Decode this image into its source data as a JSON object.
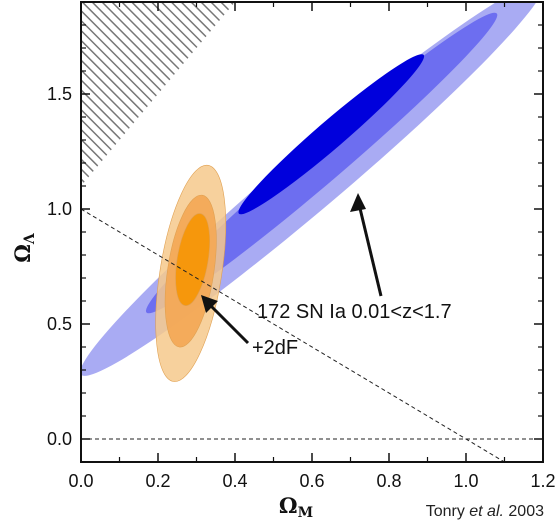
{
  "chart_data": {
    "type": "contour",
    "xlabel": "Ω",
    "xlabel_sub": "M",
    "ylabel": "Ω",
    "ylabel_sub": "Λ",
    "xlim": [
      0.0,
      1.2
    ],
    "ylim": [
      -0.1,
      1.9
    ],
    "xticks": [
      0.0,
      0.2,
      0.4,
      0.6,
      0.8,
      1.0,
      1.2
    ],
    "xtick_labels": [
      "0.0",
      "0.2",
      "0.4",
      "0.6",
      "0.8",
      "1.0",
      "1.2"
    ],
    "yticks": [
      0.0,
      0.5,
      1.0,
      1.5
    ],
    "ytick_labels": [
      "0.0",
      "0.5",
      "1.0",
      "1.5"
    ],
    "grid": false,
    "colors": {
      "sn_outer": "#a9abf3",
      "sn_mid": "#6d6ef0",
      "sn_inner": "#0000dc",
      "combined_outer": "#f6c98c",
      "combined_mid": "#f3a957",
      "combined_inner": "#f59608",
      "hatch": "#777777"
    },
    "series": [
      {
        "name": "172 SN Ia 0.01<z<1.7",
        "contours": [
          {
            "level": "outer",
            "center": [
              0.6,
              1.13
            ],
            "major_axis_endpoints": [
              [
                0.0,
                0.28
              ],
              [
                1.2,
                1.98
              ]
            ],
            "minor_half_width_at_center": [
              0.12,
              0.0
            ]
          },
          {
            "level": "middle",
            "center": [
              0.62,
              1.2
            ],
            "major_axis_endpoints": [
              [
                0.17,
                0.55
              ],
              [
                1.08,
                1.85
              ]
            ],
            "minor_half_width_at_center": [
              0.08,
              0.0
            ]
          },
          {
            "level": "inner",
            "center": [
              0.65,
              1.32
            ],
            "major_axis_endpoints": [
              [
                0.41,
                0.98
              ],
              [
                0.89,
                1.67
              ]
            ],
            "minor_half_width_at_center": [
              0.055,
              0.0
            ]
          }
        ]
      },
      {
        "name": "+2dF",
        "contours": [
          {
            "level": "outer",
            "center": [
              0.28,
              0.72
            ],
            "major_axis_endpoints": [
              [
                0.24,
                0.25
              ],
              [
                0.33,
                1.19
              ]
            ],
            "minor_half_width": 0.08
          },
          {
            "level": "middle",
            "center": [
              0.28,
              0.75
            ],
            "major_axis_endpoints": [
              [
                0.255,
                0.4
              ],
              [
                0.315,
                1.06
              ]
            ],
            "minor_half_width": 0.06
          },
          {
            "level": "inner",
            "center": [
              0.29,
              0.78
            ],
            "major_axis_endpoints": [
              [
                0.27,
                0.58
              ],
              [
                0.31,
                0.98
              ]
            ],
            "minor_half_width": 0.04
          }
        ]
      }
    ],
    "reference_lines": [
      {
        "style": "dashed",
        "points": [
          [
            0.0,
            1.0
          ],
          [
            1.2,
            -0.2
          ]
        ]
      },
      {
        "style": "dashed",
        "points": [
          [
            0.0,
            0.0
          ],
          [
            1.2,
            0.0
          ]
        ]
      }
    ],
    "excluded_region": {
      "style": "hatched",
      "vertices": [
        [
          0.0,
          1.9
        ],
        [
          0.4,
          1.9
        ],
        [
          0.0,
          1.1
        ]
      ]
    },
    "annotations": [
      {
        "text": "172 SN Ia 0.01<z<1.7",
        "points_to": [
          0.72,
          1.03
        ]
      },
      {
        "text": "+2dF",
        "points_to": [
          0.33,
          0.6
        ]
      }
    ],
    "credit": {
      "prefix": "Tonry ",
      "italic": "et al.",
      "suffix": " 2003"
    }
  }
}
